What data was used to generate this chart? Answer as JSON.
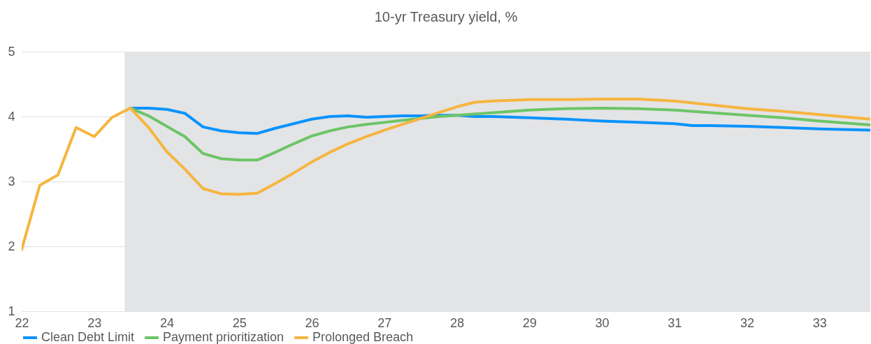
{
  "chart_data": {
    "type": "line",
    "title": "10-yr Treasury yield, %",
    "xlim": [
      22,
      33.7
    ],
    "xticks": [
      22,
      23,
      24,
      25,
      26,
      27,
      28,
      29,
      30,
      31,
      32,
      33
    ],
    "ylim": [
      1,
      5
    ],
    "yticks": [
      1,
      2,
      3,
      4,
      5
    ],
    "grid": "y",
    "legend": "bottom",
    "marker": "none",
    "line_style": "solid",
    "bands": [
      {
        "axis": "x",
        "from": 23.42,
        "to": 33.7,
        "color": "#e3e4e6"
      }
    ],
    "series": [
      {
        "name": "Clean Debt Limit",
        "color": "#0a93fc",
        "x": [
          23.5,
          23.75,
          24,
          24.25,
          24.5,
          24.75,
          25,
          25.25,
          25.5,
          25.75,
          26,
          26.25,
          26.5,
          26.75,
          27,
          27.25,
          27.5,
          27.75,
          28,
          28.25,
          28.5,
          29,
          29.5,
          30,
          30.5,
          31,
          31.25,
          31.5,
          32,
          32.5,
          33,
          33.7
        ],
        "values": [
          4.13,
          4.13,
          4.11,
          4.05,
          3.84,
          3.78,
          3.75,
          3.74,
          3.82,
          3.89,
          3.96,
          4.0,
          4.01,
          3.99,
          4.0,
          4.01,
          4.01,
          4.02,
          4.02,
          4.0,
          4.0,
          3.98,
          3.96,
          3.93,
          3.91,
          3.89,
          3.86,
          3.86,
          3.85,
          3.83,
          3.81,
          3.79
        ]
      },
      {
        "name": "Payment prioritization",
        "color": "#6cc566",
        "x": [
          23.5,
          23.75,
          24,
          24.25,
          24.5,
          24.75,
          25,
          25.25,
          25.5,
          25.75,
          26,
          26.25,
          26.5,
          26.75,
          27,
          27.25,
          27.5,
          27.75,
          28,
          28.5,
          29,
          29.5,
          30,
          30.5,
          31,
          31.5,
          32,
          32.5,
          33,
          33.7
        ],
        "values": [
          4.13,
          4.01,
          3.85,
          3.69,
          3.43,
          3.35,
          3.33,
          3.33,
          3.45,
          3.58,
          3.7,
          3.78,
          3.84,
          3.88,
          3.91,
          3.94,
          3.97,
          4.0,
          4.02,
          4.06,
          4.1,
          4.12,
          4.13,
          4.12,
          4.1,
          4.06,
          4.02,
          3.98,
          3.93,
          3.87
        ]
      },
      {
        "name": "Prolonged Breach",
        "color": "#f5b53f",
        "x": [
          22,
          22.25,
          22.5,
          22.75,
          23,
          23.25,
          23.5,
          23.75,
          24,
          24.25,
          24.5,
          24.75,
          25,
          25.25,
          25.5,
          25.75,
          26,
          26.25,
          26.5,
          26.75,
          27,
          27.25,
          27.5,
          27.75,
          28,
          28.25,
          28.5,
          29,
          29.5,
          30,
          30.5,
          31,
          31.5,
          32,
          32.5,
          33,
          33.7
        ],
        "values": [
          1.95,
          2.94,
          3.1,
          3.83,
          3.69,
          3.99,
          4.13,
          3.83,
          3.46,
          3.19,
          2.89,
          2.81,
          2.8,
          2.82,
          2.97,
          3.13,
          3.3,
          3.45,
          3.58,
          3.69,
          3.79,
          3.88,
          3.97,
          4.06,
          4.15,
          4.22,
          4.24,
          4.26,
          4.26,
          4.27,
          4.27,
          4.24,
          4.18,
          4.12,
          4.08,
          4.03,
          3.96
        ]
      }
    ]
  }
}
